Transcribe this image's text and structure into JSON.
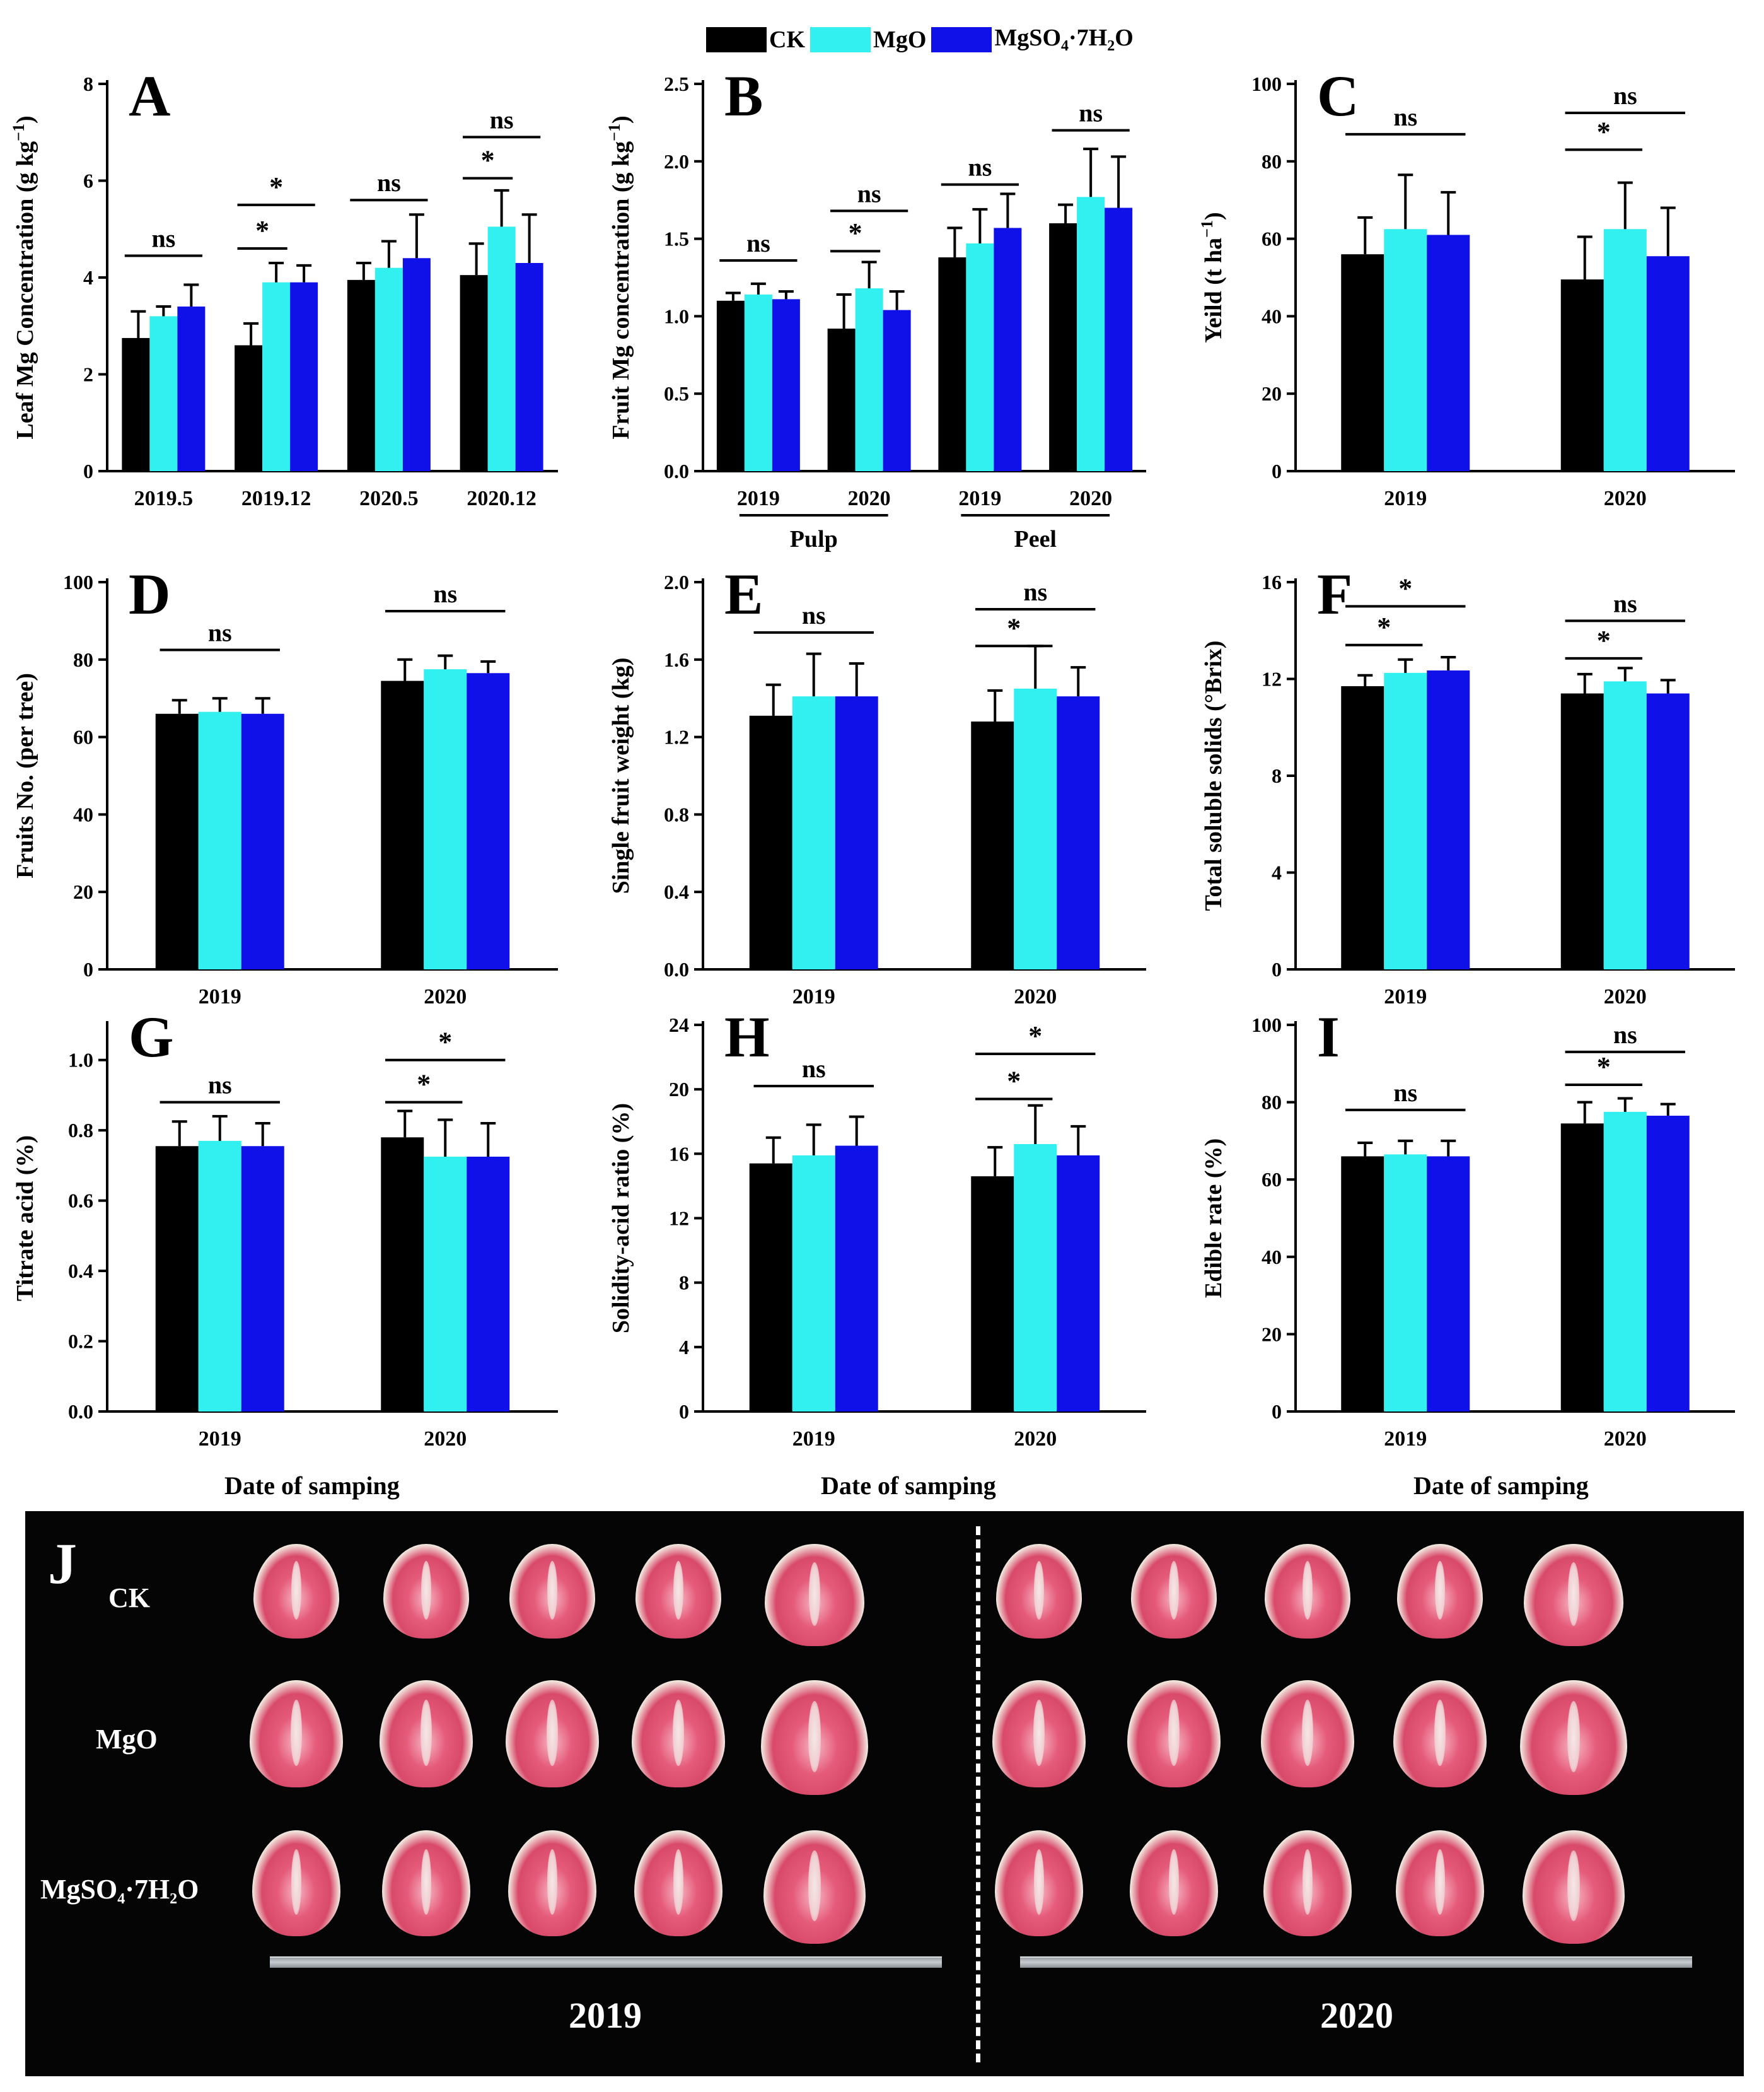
{
  "colors": {
    "CK": "#000000",
    "MgO": "#33f0f0",
    "MgSO4": "#1010e8",
    "axis": "#000000"
  },
  "legend": {
    "items": [
      {
        "key": "CK",
        "label": "CK"
      },
      {
        "key": "MgO",
        "label": "MgO"
      },
      {
        "key": "MgSO4",
        "label": "MgSO",
        "sub": "4",
        "tail": "·7H",
        "sub2": "2",
        "tail2": "O"
      }
    ]
  },
  "xlabel_common": "Date of samping",
  "chart_data": [
    {
      "id": "A",
      "type": "bar",
      "ylabel": "Leaf Mg Concentration (g kg",
      "ylabel_sup": "−1",
      "ylabel_close": ")",
      "ylim": [
        0,
        8
      ],
      "yticks": [
        0,
        2,
        4,
        6,
        8
      ],
      "ytick_labels": [
        "0",
        "2",
        "4",
        "6",
        "8"
      ],
      "categories": [
        "2019.5",
        "2019.12",
        "2020.5",
        "2020.12"
      ],
      "series": [
        {
          "name": "CK",
          "values": [
            2.75,
            2.6,
            3.95,
            4.05
          ],
          "errors": [
            0.55,
            0.45,
            0.35,
            0.65
          ]
        },
        {
          "name": "MgO",
          "values": [
            3.2,
            3.9,
            4.2,
            5.05
          ],
          "errors": [
            0.2,
            0.4,
            0.55,
            0.75
          ]
        },
        {
          "name": "MgSO4·7H2O",
          "values": [
            3.4,
            3.9,
            4.4,
            4.3
          ],
          "errors": [
            0.45,
            0.35,
            0.9,
            1.0
          ]
        }
      ],
      "annotations": [
        {
          "cat": 0,
          "from": 0,
          "to": 2,
          "label": "ns",
          "y": 4.45
        },
        {
          "cat": 1,
          "from": 0,
          "to": 1,
          "label": "*",
          "y": 4.6
        },
        {
          "cat": 1,
          "from": 0,
          "to": 2,
          "label": "*",
          "y": 5.5
        },
        {
          "cat": 2,
          "from": 0,
          "to": 2,
          "label": "ns",
          "y": 5.6
        },
        {
          "cat": 3,
          "from": 0,
          "to": 1,
          "label": "*",
          "y": 6.05
        },
        {
          "cat": 3,
          "from": 0,
          "to": 2,
          "label": "ns",
          "y": 6.9
        }
      ]
    },
    {
      "id": "B",
      "type": "bar",
      "ylabel": "Fruit Mg concentration (g kg",
      "ylabel_sup": "−1",
      "ylabel_close": ")",
      "ylim": [
        0,
        2.5
      ],
      "yticks": [
        0,
        0.5,
        1.0,
        1.5,
        2.0,
        2.5
      ],
      "ytick_labels": [
        "0.0",
        "0.5",
        "1.0",
        "1.5",
        "2.0",
        "2.5"
      ],
      "categories": [
        "2019",
        "2020",
        "2019",
        "2020"
      ],
      "groups": [
        {
          "label": "Pulp",
          "cats": [
            0,
            1
          ]
        },
        {
          "label": "Peel",
          "cats": [
            2,
            3
          ]
        }
      ],
      "series": [
        {
          "name": "CK",
          "values": [
            1.1,
            0.92,
            1.38,
            1.6
          ],
          "errors": [
            0.05,
            0.22,
            0.19,
            0.12
          ]
        },
        {
          "name": "MgO",
          "values": [
            1.14,
            1.18,
            1.47,
            1.77
          ],
          "errors": [
            0.07,
            0.17,
            0.22,
            0.31
          ]
        },
        {
          "name": "MgSO4·7H2O",
          "values": [
            1.11,
            1.04,
            1.57,
            1.7
          ],
          "errors": [
            0.05,
            0.12,
            0.22,
            0.33
          ]
        }
      ],
      "annotations": [
        {
          "cat": 0,
          "from": 0,
          "to": 2,
          "label": "ns",
          "y": 1.36
        },
        {
          "cat": 1,
          "from": 0,
          "to": 1,
          "label": "*",
          "y": 1.42
        },
        {
          "cat": 1,
          "from": 0,
          "to": 2,
          "label": "ns",
          "y": 1.68
        },
        {
          "cat": 2,
          "from": 0,
          "to": 2,
          "label": "ns",
          "y": 1.85
        },
        {
          "cat": 3,
          "from": 0,
          "to": 2,
          "label": "ns",
          "y": 2.2
        }
      ]
    },
    {
      "id": "C",
      "type": "bar",
      "ylabel": "Yeild (t ha",
      "ylabel_sup": "−1",
      "ylabel_close": ")",
      "ylim": [
        0,
        100
      ],
      "yticks": [
        0,
        20,
        40,
        60,
        80,
        100
      ],
      "ytick_labels": [
        "0",
        "20",
        "40",
        "60",
        "80",
        "100"
      ],
      "categories": [
        "2019",
        "2020"
      ],
      "series": [
        {
          "name": "CK",
          "values": [
            56,
            49.5
          ],
          "errors": [
            9.5,
            11
          ]
        },
        {
          "name": "MgO",
          "values": [
            62.5,
            62.5
          ],
          "errors": [
            14,
            12
          ]
        },
        {
          "name": "MgSO4·7H2O",
          "values": [
            61,
            55.5
          ],
          "errors": [
            11,
            12.5
          ]
        }
      ],
      "annotations": [
        {
          "cat": 0,
          "from": 0,
          "to": 2,
          "label": "ns",
          "y": 87
        },
        {
          "cat": 1,
          "from": 0,
          "to": 1,
          "label": "*",
          "y": 83
        },
        {
          "cat": 1,
          "from": 0,
          "to": 2,
          "label": "ns",
          "y": 92.5
        }
      ]
    },
    {
      "id": "D",
      "type": "bar",
      "ylabel": "Fruits No. (per tree)",
      "ylim": [
        0,
        100
      ],
      "yticks": [
        0,
        20,
        40,
        60,
        80,
        100
      ],
      "ytick_labels": [
        "0",
        "20",
        "40",
        "60",
        "80",
        "100"
      ],
      "categories": [
        "2019",
        "2020"
      ],
      "series": [
        {
          "name": "CK",
          "values": [
            66,
            74.5
          ],
          "errors": [
            3.5,
            5.5
          ]
        },
        {
          "name": "MgO",
          "values": [
            66.5,
            77.5
          ],
          "errors": [
            3.5,
            3.5
          ]
        },
        {
          "name": "MgSO4·7H2O",
          "values": [
            66,
            76.5
          ],
          "errors": [
            4,
            3
          ]
        }
      ],
      "annotations": [
        {
          "cat": 0,
          "from": 0,
          "to": 2,
          "label": "ns",
          "y": 82.5
        },
        {
          "cat": 1,
          "from": 0,
          "to": 2,
          "label": "ns",
          "y": 92.5
        }
      ]
    },
    {
      "id": "E",
      "type": "bar",
      "ylabel": "Single fruit weight (kg)",
      "ylim": [
        0,
        2.0
      ],
      "yticks": [
        0,
        0.4,
        0.8,
        1.2,
        1.6,
        2.0
      ],
      "ytick_labels": [
        "0.0",
        "0.4",
        "0.8",
        "1.2",
        "1.6",
        "2.0"
      ],
      "categories": [
        "2019",
        "2020"
      ],
      "series": [
        {
          "name": "CK",
          "values": [
            1.31,
            1.28
          ],
          "errors": [
            0.16,
            0.16
          ]
        },
        {
          "name": "MgO",
          "values": [
            1.41,
            1.45
          ],
          "errors": [
            0.22,
            0.22
          ]
        },
        {
          "name": "MgSO4·7H2O",
          "values": [
            1.41,
            1.41
          ],
          "errors": [
            0.17,
            0.15
          ]
        }
      ],
      "annotations": [
        {
          "cat": 0,
          "from": 0,
          "to": 2,
          "label": "ns",
          "y": 1.74
        },
        {
          "cat": 1,
          "from": 0,
          "to": 1,
          "label": "*",
          "y": 1.67
        },
        {
          "cat": 1,
          "from": 0,
          "to": 2,
          "label": "ns",
          "y": 1.86
        }
      ]
    },
    {
      "id": "F",
      "type": "bar",
      "ylabel": "Total soluble solids (°Brix)",
      "ylim": [
        0,
        16
      ],
      "yticks": [
        0,
        4,
        8,
        12,
        16
      ],
      "ytick_labels": [
        "0",
        "4",
        "8",
        "12",
        "16"
      ],
      "categories": [
        "2019",
        "2020"
      ],
      "series": [
        {
          "name": "CK",
          "values": [
            11.7,
            11.4
          ],
          "errors": [
            0.45,
            0.8
          ]
        },
        {
          "name": "MgO",
          "values": [
            12.25,
            11.9
          ],
          "errors": [
            0.55,
            0.55
          ]
        },
        {
          "name": "MgSO4·7H2O",
          "values": [
            12.35,
            11.4
          ],
          "errors": [
            0.55,
            0.55
          ]
        }
      ],
      "annotations": [
        {
          "cat": 0,
          "from": 0,
          "to": 1,
          "label": "*",
          "y": 13.4
        },
        {
          "cat": 0,
          "from": 0,
          "to": 2,
          "label": "*",
          "y": 15.0
        },
        {
          "cat": 1,
          "from": 0,
          "to": 1,
          "label": "*",
          "y": 12.85
        },
        {
          "cat": 1,
          "from": 0,
          "to": 2,
          "label": "ns",
          "y": 14.4
        }
      ]
    },
    {
      "id": "G",
      "type": "bar",
      "ylabel": "Titrate acid (%)",
      "ylim": [
        0,
        1.1
      ],
      "yticks": [
        0,
        0.2,
        0.4,
        0.6,
        0.8,
        1.0
      ],
      "ytick_labels": [
        "0.0",
        "0.2",
        "0.4",
        "0.6",
        "0.8",
        "1.0"
      ],
      "categories": [
        "2019",
        "2020"
      ],
      "series": [
        {
          "name": "CK",
          "values": [
            0.755,
            0.78
          ],
          "errors": [
            0.07,
            0.075
          ]
        },
        {
          "name": "MgO",
          "values": [
            0.77,
            0.725
          ],
          "errors": [
            0.07,
            0.105
          ]
        },
        {
          "name": "MgSO4·7H2O",
          "values": [
            0.755,
            0.725
          ],
          "errors": [
            0.065,
            0.095
          ]
        }
      ],
      "annotations": [
        {
          "cat": 0,
          "from": 0,
          "to": 2,
          "label": "ns",
          "y": 0.88
        },
        {
          "cat": 1,
          "from": 0,
          "to": 1,
          "label": "*",
          "y": 0.88
        },
        {
          "cat": 1,
          "from": 0,
          "to": 2,
          "label": "*",
          "y": 1.0
        }
      ]
    },
    {
      "id": "H",
      "type": "bar",
      "ylabel": "Solidity-acid ratio (%)",
      "ylim": [
        0,
        24
      ],
      "yticks": [
        0,
        4,
        8,
        12,
        16,
        20,
        24
      ],
      "ytick_labels": [
        "0",
        "4",
        "8",
        "12",
        "16",
        "20",
        "24"
      ],
      "categories": [
        "2019",
        "2020"
      ],
      "series": [
        {
          "name": "CK",
          "values": [
            15.4,
            14.6
          ],
          "errors": [
            1.6,
            1.8
          ]
        },
        {
          "name": "MgO",
          "values": [
            15.9,
            16.6
          ],
          "errors": [
            1.9,
            2.4
          ]
        },
        {
          "name": "MgSO4·7H2O",
          "values": [
            16.5,
            15.9
          ],
          "errors": [
            1.8,
            1.8
          ]
        }
      ],
      "annotations": [
        {
          "cat": 0,
          "from": 0,
          "to": 2,
          "label": "ns",
          "y": 20.2
        },
        {
          "cat": 1,
          "from": 0,
          "to": 1,
          "label": "*",
          "y": 19.4
        },
        {
          "cat": 1,
          "from": 0,
          "to": 2,
          "label": "*",
          "y": 22.2
        }
      ]
    },
    {
      "id": "I",
      "type": "bar",
      "ylabel": "Edible rate (%)",
      "ylim": [
        0,
        100
      ],
      "yticks": [
        0,
        20,
        40,
        60,
        80,
        100
      ],
      "ytick_labels": [
        "0",
        "20",
        "40",
        "60",
        "80",
        "100"
      ],
      "categories": [
        "2019",
        "2020"
      ],
      "series": [
        {
          "name": "CK",
          "values": [
            66,
            74.5
          ],
          "errors": [
            3.5,
            5.5
          ]
        },
        {
          "name": "MgO",
          "values": [
            66.5,
            77.5
          ],
          "errors": [
            3.5,
            3.5
          ]
        },
        {
          "name": "MgSO4·7H2O",
          "values": [
            66,
            76.5
          ],
          "errors": [
            4,
            3
          ]
        }
      ],
      "annotations": [
        {
          "cat": 0,
          "from": 0,
          "to": 2,
          "label": "ns",
          "y": 78
        },
        {
          "cat": 1,
          "from": 0,
          "to": 1,
          "label": "*",
          "y": 84.5
        },
        {
          "cat": 1,
          "from": 0,
          "to": 2,
          "label": "ns",
          "y": 93
        }
      ]
    }
  ],
  "photo": {
    "panel_letter": "J",
    "row_labels": {
      "CK": "CK",
      "MgO": "MgO",
      "MgSO4": "MgSO",
      "MgSO4_sub": "4",
      "MgSO4_tail": "·7H",
      "MgSO4_sub2": "2",
      "MgSO4_tail2": "O"
    },
    "years": [
      "2019",
      "2020"
    ],
    "rows": 3,
    "fruits_per_year": 5
  }
}
